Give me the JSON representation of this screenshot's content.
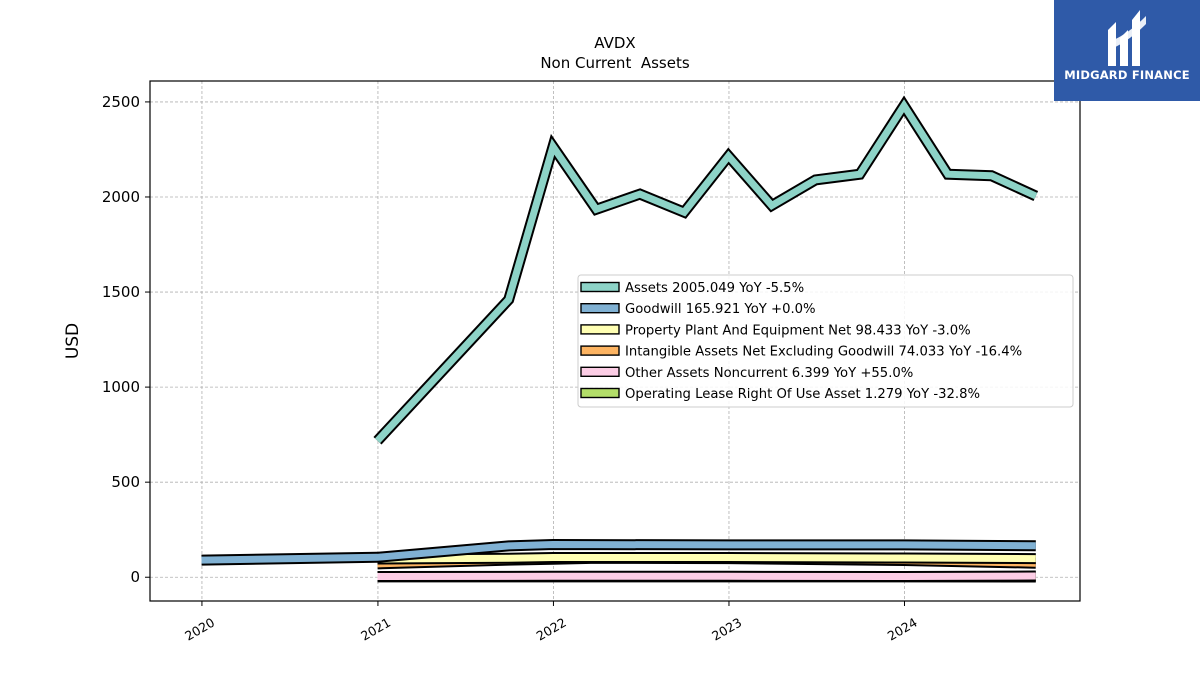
{
  "brand": {
    "name": "MIDGARD FINANCE",
    "logo_icon": "midgard-m-logo-icon",
    "bg_color": "#2f5aa8"
  },
  "chart_data": {
    "type": "line",
    "title": "AVDX",
    "subtitle": "Non Current  Assets",
    "ylabel": "USD",
    "xlabel": "",
    "ylim": [
      -125,
      2610
    ],
    "xlim": [
      "2019-09-15",
      "2024-12-31"
    ],
    "yticks": [
      0,
      500,
      1000,
      1500,
      2000,
      2500
    ],
    "xticks": [
      "2020",
      "2021",
      "2022",
      "2023",
      "2024"
    ],
    "grid": true,
    "legend_position": "center-right",
    "series": [
      {
        "name": "Assets",
        "legend": "Assets  2005.049 YoY -5.5%",
        "color": "#8dd3c7",
        "points": [
          [
            "2020-12-31",
            718
          ],
          [
            "2021-09-30",
            1460
          ],
          [
            "2021-12-31",
            2265
          ],
          [
            "2022-03-31",
            1935
          ],
          [
            "2022-06-30",
            2015
          ],
          [
            "2022-09-30",
            1920
          ],
          [
            "2022-12-31",
            2215
          ],
          [
            "2023-03-31",
            1955
          ],
          [
            "2023-06-30",
            2090
          ],
          [
            "2023-09-30",
            2120
          ],
          [
            "2023-12-31",
            2480
          ],
          [
            "2024-03-31",
            2120
          ],
          [
            "2024-06-30",
            2112
          ],
          [
            "2024-09-30",
            2005
          ]
        ]
      },
      {
        "name": "Goodwill",
        "legend": "Goodwill  165.921 YoY +0.0%",
        "color": "#80b1d3",
        "points": [
          [
            "2019-12-31",
            90
          ],
          [
            "2020-12-31",
            105
          ],
          [
            "2021-09-30",
            165
          ],
          [
            "2021-12-31",
            172
          ],
          [
            "2022-12-31",
            170
          ],
          [
            "2023-12-31",
            170
          ],
          [
            "2024-09-30",
            166
          ]
        ]
      },
      {
        "name": "Property Plant And Equipment Net",
        "legend": "Property Plant And Equipment Net  98.433 YoY -3.0%",
        "color": "#ffffb3",
        "points": [
          [
            "2020-12-31",
            96
          ],
          [
            "2021-09-30",
            100
          ],
          [
            "2021-12-31",
            104
          ],
          [
            "2022-12-31",
            104
          ],
          [
            "2023-12-31",
            101
          ],
          [
            "2024-09-30",
            98
          ]
        ]
      },
      {
        "name": "Intangible Assets Net Excluding Goodwill",
        "legend": "Intangible Assets Net Excluding Goodwill  74.033 YoY -16.4%",
        "color": "#fdb462",
        "points": [
          [
            "2020-12-31",
            70
          ],
          [
            "2021-09-30",
            90
          ],
          [
            "2021-12-31",
            95
          ],
          [
            "2022-03-31",
            100
          ],
          [
            "2022-12-31",
            98
          ],
          [
            "2023-12-31",
            88
          ],
          [
            "2024-09-30",
            74
          ]
        ]
      },
      {
        "name": "Other Assets Noncurrent",
        "legend": "Other Assets Noncurrent  6.399 YoY +55.0%",
        "color": "#fccde5",
        "points": [
          [
            "2020-12-31",
            4
          ],
          [
            "2021-12-31",
            5
          ],
          [
            "2022-12-31",
            5
          ],
          [
            "2023-12-31",
            4
          ],
          [
            "2024-09-30",
            6.399
          ]
        ]
      },
      {
        "name": "Operating Lease Right Of Use Asset",
        "legend": "Operating Lease Right Of Use Asset  1.279 YoY -32.8%",
        "color": "#b3de69",
        "points": [
          [
            "2020-12-31",
            2
          ],
          [
            "2021-12-31",
            2
          ],
          [
            "2022-12-31",
            2
          ],
          [
            "2023-12-31",
            1.9
          ],
          [
            "2024-09-30",
            1.279
          ]
        ]
      }
    ]
  }
}
